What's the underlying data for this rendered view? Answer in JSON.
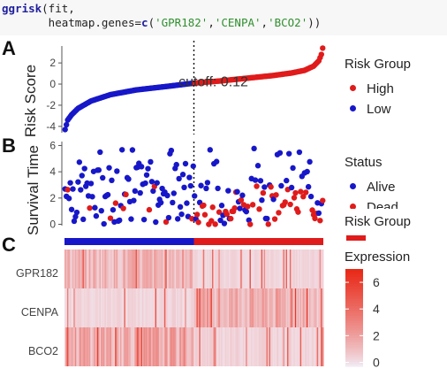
{
  "code": {
    "line1_fn": "ggrisk",
    "line1_rest": "(fit,",
    "line2_arg": "       heatmap.genes=",
    "line2_c": "c",
    "line2_open": "(",
    "genes_str": [
      "'GPR182'",
      "'CENPA'",
      "'BCO2'"
    ],
    "line2_sep": ",",
    "line2_close": "))"
  },
  "panels": {
    "a": "A",
    "b": "B",
    "c": "C"
  },
  "colors": {
    "high": "#e01b1b",
    "low": "#1717c9",
    "dead": "#e01b1b",
    "alive": "#1717c9"
  },
  "chart_data": [
    {
      "type": "scatter",
      "panel": "A",
      "ylabel": "Risk Score",
      "yticks": [
        -4,
        -2,
        0,
        2
      ],
      "ylim": [
        -4.6,
        3.6
      ],
      "cutoff_label": "cutoff: 0.12",
      "cutoff_value": 0.12,
      "n_samples": 200,
      "curve": [
        [
          0,
          -4.3
        ],
        [
          2,
          -3.4
        ],
        [
          5,
          -2.9
        ],
        [
          10,
          -2.3
        ],
        [
          20,
          -1.6
        ],
        [
          35,
          -1.0
        ],
        [
          55,
          -0.55
        ],
        [
          80,
          -0.2
        ],
        [
          100,
          0.1
        ],
        [
          120,
          0.3
        ],
        [
          140,
          0.55
        ],
        [
          160,
          0.8
        ],
        [
          175,
          1.05
        ],
        [
          185,
          1.3
        ],
        [
          192,
          1.7
        ],
        [
          196,
          2.2
        ],
        [
          198,
          2.8
        ],
        [
          199,
          3.4
        ]
      ],
      "legend": {
        "title": "Risk Group",
        "items": [
          "High",
          "Low"
        ]
      }
    },
    {
      "type": "scatter",
      "panel": "B",
      "ylabel": "Survival Time",
      "yticks": [
        0,
        2,
        4,
        6
      ],
      "ylim": [
        -0.1,
        6.3
      ],
      "legend": {
        "title": "Status",
        "items": [
          "Alive",
          "Dead"
        ]
      }
    },
    {
      "type": "heatmap",
      "panel": "C",
      "rows": [
        "GPR182",
        "CENPA",
        "BCO2"
      ],
      "risk_bar_legend": "Risk Group",
      "legend": {
        "title": "Expression",
        "ticks": [
          0,
          2,
          4,
          6
        ],
        "range": [
          -0.3,
          7
        ]
      },
      "row_profiles": {
        "GPR182": {
          "low_side": 1.2,
          "high_side": 0.25
        },
        "CENPA": {
          "low_side": 0.3,
          "high_side": 1.4
        },
        "BCO2": {
          "low_side": 1.6,
          "high_side": 0.35
        }
      }
    }
  ]
}
